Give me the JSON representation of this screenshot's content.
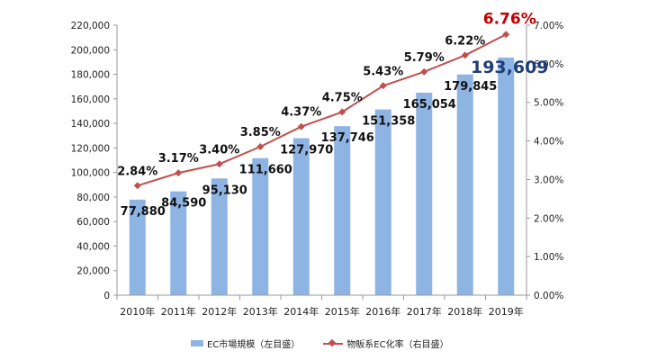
{
  "chart_data": {
    "type": "bar+line",
    "categories": [
      "2010年",
      "2011年",
      "2012年",
      "2013年",
      "2014年",
      "2015年",
      "2016年",
      "2017年",
      "2018年",
      "2019年"
    ],
    "series": [
      {
        "name": "EC市場規模（左目盛）",
        "type": "bar",
        "axis": "left",
        "values": [
          77880,
          84590,
          95130,
          111660,
          127970,
          137746,
          151358,
          165054,
          179845,
          193609
        ],
        "labels": [
          "77,880",
          "84,590",
          "95,130",
          "111,660",
          "127,970",
          "137,746",
          "151,358",
          "165,054",
          "179,845",
          "193,609"
        ],
        "color": "#8EB4E3"
      },
      {
        "name": "物販系EC化率（右目盛）",
        "type": "line",
        "axis": "right",
        "values": [
          2.84,
          3.17,
          3.4,
          3.85,
          4.37,
          4.75,
          5.43,
          5.79,
          6.22,
          6.76
        ],
        "labels": [
          "2.84%",
          "3.17%",
          "3.40%",
          "3.85%",
          "4.37%",
          "4.75%",
          "5.43%",
          "5.79%",
          "6.22%",
          "6.76%"
        ],
        "color": "#C0504D"
      }
    ],
    "left_axis": {
      "ylim": [
        0,
        220000
      ],
      "ticks": [
        "0",
        "20,000",
        "40,000",
        "60,000",
        "80,000",
        "100,000",
        "120,000",
        "140,000",
        "160,000",
        "180,000",
        "200,000",
        "220,000"
      ]
    },
    "right_axis": {
      "ylim": [
        0,
        7
      ],
      "ticks": [
        "0.00%",
        "1.00%",
        "2.00%",
        "3.00%",
        "4.00%",
        "5.00%",
        "6.00%",
        "7.00%"
      ]
    },
    "highlight": {
      "bar_label_color": "#1F3D7A",
      "line_label_color": "#C00000"
    },
    "grid": false,
    "legend_position": "bottom"
  }
}
